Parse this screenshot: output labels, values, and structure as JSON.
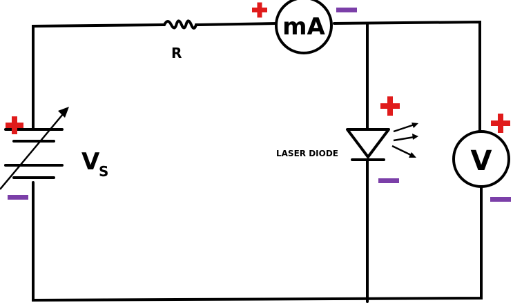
{
  "labels": {
    "resistor": "R",
    "source_main": "V",
    "source_sub": "S",
    "ammeter": "mA",
    "voltmeter": "V",
    "diode": "LASER DIODE"
  },
  "colors": {
    "wire": "#000000",
    "positive_sign": "#e01b1b",
    "negative_sign": "#7b3fa8",
    "background": "#ffffff"
  },
  "polarity_markers": [
    "+",
    "−"
  ]
}
